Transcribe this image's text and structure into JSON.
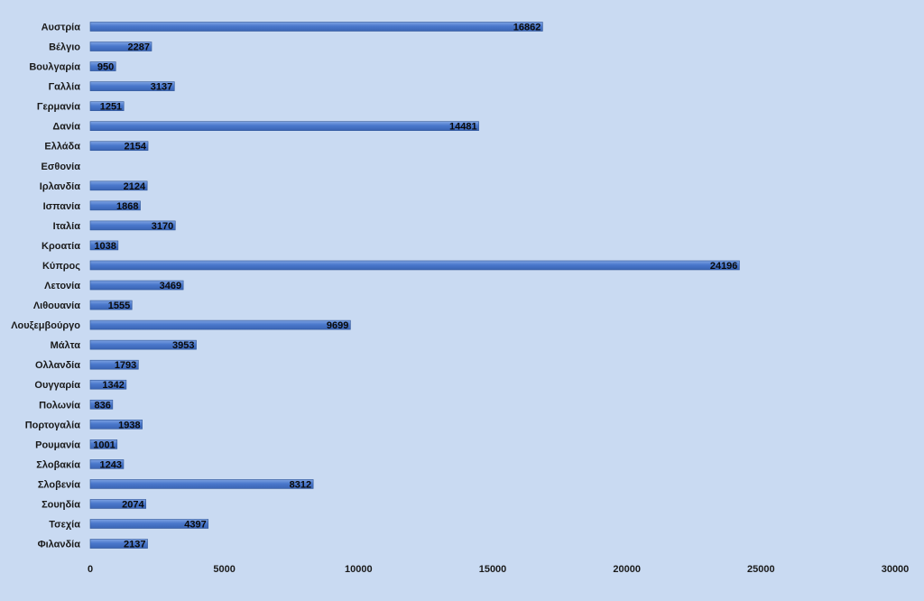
{
  "chart_data": {
    "type": "bar",
    "orientation": "horizontal",
    "categories": [
      "Αυστρία",
      "Βέλγιο",
      "Βουλγαρία",
      "Γαλλία",
      "Γερμανία",
      "Δανία",
      "Ελλάδα",
      "Εσθονία",
      "Ιρλανδία",
      "Ισπανία",
      "Ιταλία",
      "Κροατία",
      "Κύπρος",
      "Λετονία",
      "Λιθουανία",
      "Λουξεμβούργο",
      "Μάλτα",
      "Ολλανδία",
      "Ουγγαρία",
      "Πολωνία",
      "Πορτογαλία",
      "Ρουμανία",
      "Σλοβακία",
      "Σλοβενία",
      "Σουηδία",
      "Τσεχία",
      "Φιλανδία"
    ],
    "values": [
      16862,
      2287,
      950,
      3137,
      1251,
      14481,
      2154,
      null,
      2124,
      1868,
      3170,
      1038,
      24196,
      3469,
      1555,
      9699,
      3953,
      1793,
      1342,
      836,
      1938,
      1001,
      1243,
      8312,
      2074,
      4397,
      2137
    ],
    "value_labels": [
      "16862",
      "2287",
      "950",
      "3137",
      "1251",
      "14481",
      "2154",
      "",
      "2124",
      "1868",
      "3170",
      "1038",
      "24196",
      "3469",
      "1555",
      "9699",
      "3953",
      "1793",
      "1342",
      "836",
      "1938",
      "1001",
      "1243",
      "8312",
      "2074",
      "4397",
      "2137"
    ],
    "xlim": [
      0,
      30000
    ],
    "x_ticks": [
      0,
      5000,
      10000,
      15000,
      20000,
      25000,
      30000
    ],
    "x_tick_labels": [
      "0",
      "5000",
      "10000",
      "15000",
      "20000",
      "25000",
      "30000"
    ],
    "grid": false,
    "legend": "none",
    "colors": {
      "bar": "#4472c4",
      "bar_highlight": "#6f95dc",
      "background": "#c9daf2"
    }
  }
}
